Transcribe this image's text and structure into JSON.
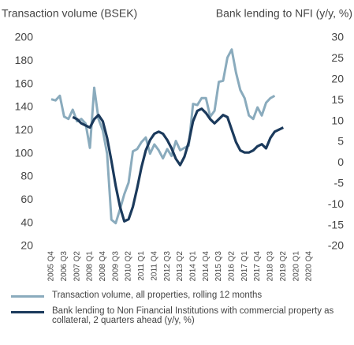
{
  "chart_data": {
    "type": "line",
    "ylabel": "Transaction volume (BSEK)",
    "y2label": "Bank lending to NFI (y/y, %)",
    "categories": [
      "2005 Q4",
      null,
      null,
      "2006 Q3",
      null,
      null,
      "2007 Q2",
      null,
      null,
      "2008 Q1",
      null,
      null,
      "2008 Q4",
      null,
      null,
      "2009 Q3",
      null,
      null,
      "2010 Q2",
      null,
      null,
      "2011 Q1",
      null,
      null,
      "2011 Q4",
      null,
      null,
      "2012 Q3",
      null,
      null,
      "2013 Q2",
      null,
      null,
      "2014 Q1",
      null,
      null,
      "2014 Q4",
      null,
      null,
      "2015 Q3",
      null,
      null,
      "2016 Q2",
      null,
      null,
      "2017 Q1",
      null,
      null,
      "2017 Q4",
      null,
      null,
      "2018 Q3",
      null,
      null,
      "2019 Q2",
      null,
      null,
      "2020 Q1",
      null,
      null,
      "2020 Q4"
    ],
    "series": [
      {
        "name": "Transaction volume, all properties, rolling 12 months",
        "color": "#8aabbd",
        "values": [
          147,
          146,
          150,
          132,
          130,
          138,
          128,
          130,
          126,
          105,
          157,
          130,
          120,
          100,
          43,
          40,
          52,
          65,
          75,
          102,
          104,
          110,
          114,
          100,
          108,
          103,
          96,
          104,
          98,
          111,
          103,
          105,
          107,
          143,
          142,
          148,
          148,
          132,
          137,
          162,
          163,
          183,
          190,
          170,
          155,
          148,
          133,
          130,
          140,
          133,
          144,
          148,
          150,
          null,
          null,
          null,
          null,
          null,
          null,
          null,
          null
        ]
      },
      {
        "name": "Bank lending to Non Financial Institutions with commercial property as collateral, 2 quarters ahead (y/y, %)",
        "color": "#1b3a5c",
        "axis": "y2",
        "values": [
          null,
          null,
          null,
          null,
          null,
          11,
          10.5,
          9.5,
          9,
          8.5,
          10.5,
          11.5,
          10,
          6,
          0.5,
          -5.5,
          -10.5,
          -14,
          -13.5,
          -10.5,
          -6,
          -1,
          3,
          5.5,
          7,
          7.5,
          7,
          5.5,
          3.5,
          1,
          -0.5,
          1.5,
          5,
          10,
          12.5,
          13,
          12,
          10.5,
          9.5,
          10.5,
          11.5,
          11,
          8,
          5,
          3,
          2.5,
          2.5,
          3,
          4,
          4.5,
          3.5,
          6,
          7.5,
          8,
          8.5,
          null,
          null,
          null,
          null,
          null,
          null
        ]
      }
    ],
    "ylim": [
      20,
      200
    ],
    "yticks": [
      20,
      40,
      60,
      80,
      100,
      120,
      140,
      160,
      180,
      200
    ],
    "y2lim": [
      -20,
      30
    ],
    "y2ticks": [
      -20,
      -15,
      -10,
      -5,
      0,
      5,
      10,
      15,
      20,
      25,
      30
    ],
    "grid": false
  }
}
